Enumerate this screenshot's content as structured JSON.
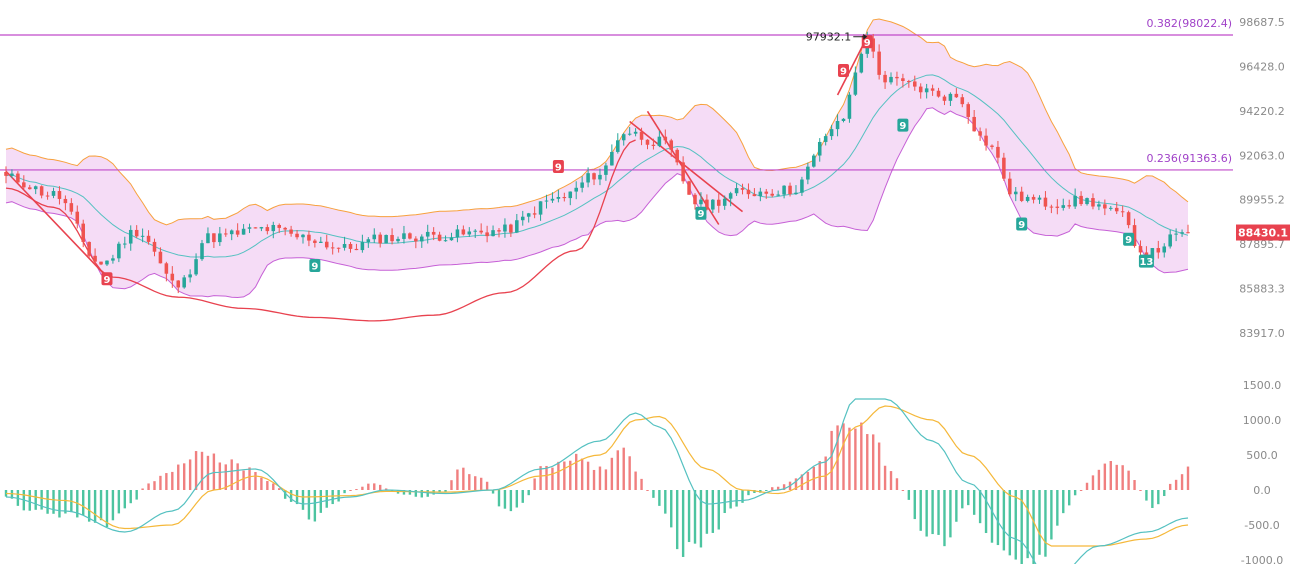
{
  "chart_data": [
    {
      "type": "candlestick",
      "panel": "price",
      "indicators": [
        "Bollinger Bands",
        "TD Sequential",
        "Fibonacci levels"
      ],
      "y_ticks": [
        "98687.5",
        "96428.0",
        "94220.2",
        "92063.0",
        "89955.2",
        "87895.7",
        "85883.3",
        "83917.0"
      ],
      "ylim": [
        83917.0,
        98687.5
      ],
      "log_scale": true,
      "fib_levels": [
        {
          "label": "0.382(98022.4)",
          "value": 98022.4
        },
        {
          "label": "0.236(91363.6)",
          "value": 91363.6
        }
      ],
      "high_annotation": {
        "label": "97932.1",
        "value": 97932.1,
        "bar": 145
      },
      "last_price": {
        "label": "88430.1",
        "value": 88430.1,
        "color": "#e8424f"
      },
      "td_markers": [
        {
          "label": "9",
          "bar": 17,
          "value": 86300,
          "side": "sell"
        },
        {
          "label": "9",
          "bar": 52,
          "value": 86900,
          "side": "buy"
        },
        {
          "label": "9",
          "bar": 93,
          "value": 91500,
          "side": "sell"
        },
        {
          "label": "9",
          "bar": 117,
          "value": 89300,
          "side": "buy"
        },
        {
          "label": "9",
          "bar": 141,
          "value": 96200,
          "side": "sell"
        },
        {
          "label": "9",
          "bar": 145,
          "value": 97650,
          "side": "sell"
        },
        {
          "label": "9",
          "bar": 151,
          "value": 93500,
          "side": "buy"
        },
        {
          "label": "9",
          "bar": 171,
          "value": 88800,
          "side": "buy"
        },
        {
          "label": "9",
          "bar": 189,
          "value": 88100,
          "side": "buy"
        },
        {
          "label": "13",
          "bar": 192,
          "value": 87100,
          "side": "buy"
        }
      ],
      "anchors": [
        [
          0,
          91000
        ],
        [
          8,
          90200
        ],
        [
          16,
          87000
        ],
        [
          22,
          88500
        ],
        [
          29,
          86000
        ],
        [
          34,
          88200
        ],
        [
          44,
          88600
        ],
        [
          50,
          88200
        ],
        [
          57,
          87700
        ],
        [
          64,
          88200
        ],
        [
          74,
          88300
        ],
        [
          83,
          88500
        ],
        [
          93,
          90000
        ],
        [
          100,
          91200
        ],
        [
          104,
          93200
        ],
        [
          110,
          92700
        ],
        [
          117,
          89700
        ],
        [
          124,
          90300
        ],
        [
          132,
          90400
        ],
        [
          140,
          93500
        ],
        [
          145,
          97650
        ],
        [
          148,
          95700
        ],
        [
          160,
          94900
        ],
        [
          165,
          92700
        ],
        [
          170,
          90100
        ],
        [
          175,
          89800
        ],
        [
          182,
          89900
        ],
        [
          187,
          89300
        ],
        [
          192,
          87400
        ],
        [
          197,
          88200
        ],
        [
          199,
          88430
        ]
      ],
      "sar_path": [
        [
          0,
          90500
        ],
        [
          8,
          89600
        ],
        [
          18,
          86400
        ],
        [
          29,
          85500
        ],
        [
          40,
          85000
        ],
        [
          52,
          84600
        ],
        [
          62,
          84450
        ],
        [
          72,
          84700
        ],
        [
          84,
          85700
        ],
        [
          96,
          87600
        ],
        [
          106,
          92800
        ]
      ],
      "trend_lines": [
        {
          "from": [
            0,
            91300
          ],
          "to": [
            17,
            86400
          ]
        },
        {
          "from": [
            108,
            94200
          ],
          "to": [
            120,
            88800
          ]
        },
        {
          "from": [
            105,
            93700
          ],
          "to": [
            124,
            89400
          ]
        },
        {
          "from": [
            140,
            95000
          ],
          "to": [
            145,
            97932
          ]
        }
      ],
      "colors": {
        "up": "#26a69a",
        "down": "#ef5350",
        "band_fill": "#f3d6f5",
        "upper_band": "#f7a13e",
        "lower_band": "#c660d6",
        "middle_band": "#55c1c1",
        "fib_line": "#c14ac9"
      }
    },
    {
      "type": "macd",
      "panel": "macd",
      "y_ticks": [
        "1500.0",
        "1000.0",
        "500.0",
        "0.0",
        "-500.0",
        "-1000.0"
      ],
      "ylim": [
        -1000,
        1500
      ],
      "dif_anchors": [
        [
          0,
          -100
        ],
        [
          10,
          -300
        ],
        [
          20,
          -600
        ],
        [
          28,
          -300
        ],
        [
          35,
          250
        ],
        [
          42,
          300
        ],
        [
          50,
          -200
        ],
        [
          58,
          -100
        ],
        [
          64,
          0
        ],
        [
          74,
          -50
        ],
        [
          82,
          0
        ],
        [
          90,
          300
        ],
        [
          100,
          700
        ],
        [
          106,
          1100
        ],
        [
          110,
          900
        ],
        [
          118,
          -200
        ],
        [
          124,
          -150
        ],
        [
          130,
          0
        ],
        [
          138,
          400
        ],
        [
          143,
          1300
        ],
        [
          148,
          1300
        ],
        [
          156,
          700
        ],
        [
          162,
          100
        ],
        [
          170,
          -700
        ],
        [
          176,
          -1300
        ],
        [
          184,
          -800
        ],
        [
          192,
          -600
        ],
        [
          199,
          -400
        ]
      ],
      "dea_anchors": [
        [
          0,
          -50
        ],
        [
          10,
          -150
        ],
        [
          20,
          -550
        ],
        [
          28,
          -500
        ],
        [
          35,
          0
        ],
        [
          42,
          200
        ],
        [
          50,
          -100
        ],
        [
          58,
          -80
        ],
        [
          64,
          -20
        ],
        [
          74,
          -30
        ],
        [
          82,
          0
        ],
        [
          90,
          200
        ],
        [
          100,
          500
        ],
        [
          106,
          1000
        ],
        [
          110,
          1050
        ],
        [
          118,
          300
        ],
        [
          124,
          0
        ],
        [
          130,
          -50
        ],
        [
          138,
          200
        ],
        [
          143,
          900
        ],
        [
          148,
          1200
        ],
        [
          156,
          1000
        ],
        [
          162,
          500
        ],
        [
          170,
          -100
        ],
        [
          176,
          -800
        ],
        [
          184,
          -800
        ],
        [
          192,
          -700
        ],
        [
          199,
          -500
        ]
      ],
      "hist_anchors": [
        [
          0,
          -100
        ],
        [
          4,
          -300
        ],
        [
          10,
          -350
        ],
        [
          16,
          -500
        ],
        [
          21,
          -200
        ],
        [
          24,
          100
        ],
        [
          28,
          300
        ],
        [
          33,
          600
        ],
        [
          37,
          400
        ],
        [
          41,
          300
        ],
        [
          45,
          100
        ],
        [
          48,
          -200
        ],
        [
          52,
          -400
        ],
        [
          55,
          -200
        ],
        [
          58,
          0
        ],
        [
          62,
          100
        ],
        [
          66,
          -50
        ],
        [
          70,
          -100
        ],
        [
          74,
          -20
        ],
        [
          76,
          300
        ],
        [
          80,
          200
        ],
        [
          84,
          -300
        ],
        [
          87,
          -200
        ],
        [
          90,
          300
        ],
        [
          96,
          450
        ],
        [
          100,
          300
        ],
        [
          104,
          600
        ],
        [
          106,
          300
        ],
        [
          108,
          0
        ],
        [
          110,
          -200
        ],
        [
          114,
          -900
        ],
        [
          118,
          -700
        ],
        [
          122,
          -300
        ],
        [
          126,
          -50
        ],
        [
          130,
          50
        ],
        [
          134,
          200
        ],
        [
          137,
          400
        ],
        [
          140,
          900
        ],
        [
          142,
          1000
        ],
        [
          146,
          700
        ],
        [
          149,
          300
        ],
        [
          151,
          0
        ],
        [
          154,
          -600
        ],
        [
          158,
          -700
        ],
        [
          162,
          -200
        ],
        [
          164,
          -500
        ],
        [
          168,
          -900
        ],
        [
          172,
          -1000
        ],
        [
          175,
          -900
        ],
        [
          178,
          -300
        ],
        [
          181,
          0
        ],
        [
          183,
          200
        ],
        [
          185,
          400
        ],
        [
          189,
          300
        ],
        [
          191,
          0
        ],
        [
          193,
          -300
        ],
        [
          195,
          -100
        ],
        [
          196,
          100
        ],
        [
          199,
          300
        ]
      ],
      "colors": {
        "dif": "#55c1c1",
        "dea": "#f5b83a",
        "hist_up": "#f07f7f",
        "hist_down": "#4cc4a0"
      }
    }
  ]
}
